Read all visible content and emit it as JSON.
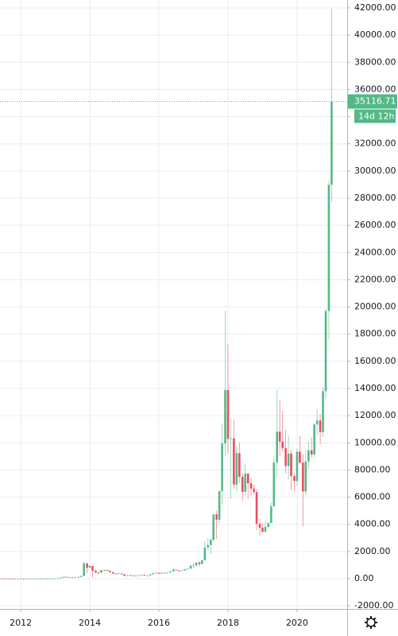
{
  "chart_data": {
    "type": "candlestick",
    "x": [
      2011.42,
      2011.5,
      2011.58,
      2011.67,
      2011.75,
      2011.83,
      2011.92,
      2012,
      2012.08,
      2012.17,
      2012.25,
      2012.33,
      2012.42,
      2012.5,
      2012.58,
      2012.67,
      2012.75,
      2012.83,
      2012.92,
      2013,
      2013.08,
      2013.17,
      2013.25,
      2013.33,
      2013.42,
      2013.5,
      2013.58,
      2013.67,
      2013.75,
      2013.83,
      2013.92,
      2014,
      2014.08,
      2014.17,
      2014.25,
      2014.33,
      2014.42,
      2014.5,
      2014.58,
      2014.67,
      2014.75,
      2014.83,
      2014.92,
      2015,
      2015.08,
      2015.17,
      2015.25,
      2015.33,
      2015.42,
      2015.5,
      2015.58,
      2015.67,
      2015.75,
      2015.83,
      2015.92,
      2016,
      2016.08,
      2016.17,
      2016.25,
      2016.33,
      2016.42,
      2016.5,
      2016.58,
      2016.67,
      2016.75,
      2016.83,
      2016.92,
      2017,
      2017.08,
      2017.17,
      2017.25,
      2017.33,
      2017.42,
      2017.5,
      2017.58,
      2017.67,
      2017.75,
      2017.83,
      2017.92,
      2018,
      2018.08,
      2018.17,
      2018.25,
      2018.33,
      2018.42,
      2018.5,
      2018.58,
      2018.67,
      2018.75,
      2018.83,
      2018.92,
      2019,
      2019.08,
      2019.17,
      2019.25,
      2019.33,
      2019.42,
      2019.5,
      2019.58,
      2019.67,
      2019.75,
      2019.83,
      2019.92,
      2020,
      2020.08,
      2020.17,
      2020.25,
      2020.33,
      2020.42,
      2020.5,
      2020.58,
      2020.67,
      2020.75,
      2020.83,
      2020.92,
      2021
    ],
    "open": [
      9.3,
      16.9,
      13.4,
      8.2,
      5.1,
      3.2,
      3,
      4.7,
      5.5,
      4.9,
      4.9,
      5,
      5.1,
      6.7,
      9.3,
      10.2,
      12.4,
      11.2,
      12.6,
      13.5,
      20.4,
      33.4,
      93,
      139,
      129,
      97,
      106,
      129,
      128,
      204,
      1129,
      805,
      938,
      573,
      452,
      445,
      630,
      640,
      586,
      480,
      387,
      338,
      378,
      320,
      217,
      254,
      244,
      236,
      230,
      263,
      284,
      230,
      236,
      313,
      377,
      430,
      369,
      437,
      416,
      448,
      531,
      673,
      624,
      574,
      609,
      700,
      742,
      964,
      965,
      1190,
      1080,
      1350,
      2300,
      2480,
      2870,
      4730,
      4340,
      6450,
      9950,
      13880,
      10280,
      10330,
      6930,
      9240,
      7500,
      6390,
      7730,
      7020,
      6630,
      6370,
      4040,
      3740,
      3460,
      3810,
      4100,
      5320,
      8560,
      10820,
      10090,
      9600,
      8290,
      9200,
      7550,
      7190,
      9350,
      8540,
      6420,
      8630,
      9450,
      9140,
      11350,
      11650,
      10780,
      13800,
      19700,
      28990
    ],
    "high": [
      29.6,
      17.5,
      14,
      9,
      5.4,
      3.5,
      4.8,
      7.4,
      6.3,
      5.4,
      5.3,
      5.2,
      6.7,
      9.5,
      15.4,
      12.5,
      12.9,
      12.7,
      13.8,
      20.9,
      33.7,
      95,
      266,
      140,
      130,
      110,
      130,
      144,
      225,
      1242,
      1163,
      1048,
      938,
      718,
      550,
      670,
      680,
      660,
      600,
      510,
      420,
      470,
      380,
      320,
      270,
      300,
      260,
      250,
      267,
      320,
      290,
      245,
      330,
      500,
      470,
      460,
      440,
      440,
      470,
      550,
      780,
      680,
      630,
      620,
      720,
      760,
      980,
      1160,
      1210,
      1290,
      1400,
      2800,
      3000,
      2950,
      4750,
      5000,
      6450,
      11400,
      19700,
      17250,
      11780,
      11700,
      9760,
      10000,
      7770,
      8500,
      7760,
      7410,
      6940,
      6600,
      4400,
      4100,
      4200,
      4140,
      5600,
      9000,
      13880,
      13130,
      12330,
      10950,
      10540,
      9500,
      7750,
      9580,
      10500,
      9190,
      9460,
      10070,
      10380,
      11440,
      12470,
      12090,
      14100,
      19900,
      29300,
      41950
    ],
    "low": [
      6.5,
      12.5,
      7,
      4.8,
      2.2,
      2,
      2.7,
      4.6,
      4.3,
      4.7,
      4.8,
      4.9,
      5.2,
      6.6,
      7.1,
      10,
      10.2,
      10.6,
      12.4,
      13.2,
      19.3,
      33,
      50,
      80,
      88,
      65,
      97,
      97,
      100,
      203,
      383,
      765,
      102,
      420,
      340,
      420,
      550,
      560,
      440,
      340,
      280,
      310,
      300,
      170,
      200,
      230,
      210,
      225,
      215,
      255,
      200,
      225,
      235,
      300,
      350,
      350,
      365,
      400,
      415,
      440,
      530,
      600,
      470,
      570,
      605,
      690,
      740,
      750,
      920,
      890,
      1070,
      1340,
      2100,
      1800,
      2700,
      2900,
      4100,
      5500,
      9000,
      9200,
      5870,
      6600,
      6430,
      7050,
      5750,
      6080,
      5880,
      6100,
      6200,
      3560,
      3150,
      3350,
      3390,
      3690,
      4080,
      5350,
      7450,
      9070,
      9330,
      7740,
      7300,
      6520,
      6430,
      6850,
      8450,
      3850,
      6150,
      8100,
      8900,
      8970,
      10540,
      9880,
      10430,
      13220,
      17600,
      27700
    ],
    "close": [
      16.9,
      13.4,
      8.2,
      5.1,
      3.2,
      3,
      4.7,
      5.5,
      4.9,
      4.9,
      5,
      5.1,
      6.7,
      9.3,
      10.2,
      12.4,
      11.2,
      12.6,
      13.5,
      20.4,
      33.4,
      93,
      139,
      129,
      97,
      106,
      129,
      128,
      204,
      1129,
      805,
      938,
      573,
      452,
      445,
      630,
      640,
      586,
      480,
      387,
      338,
      378,
      320,
      217,
      254,
      244,
      236,
      230,
      263,
      284,
      230,
      236,
      313,
      377,
      430,
      369,
      437,
      416,
      448,
      531,
      673,
      624,
      574,
      609,
      700,
      742,
      964,
      965,
      1190,
      1080,
      1350,
      2300,
      2480,
      2870,
      4730,
      4340,
      6450,
      9950,
      13880,
      10280,
      10330,
      6930,
      9240,
      7500,
      6390,
      7730,
      7020,
      6630,
      6370,
      4040,
      3740,
      3460,
      3810,
      4100,
      5320,
      8560,
      10820,
      10090,
      9600,
      8290,
      9200,
      7550,
      7190,
      9350,
      8540,
      6420,
      8630,
      9450,
      9140,
      11350,
      11650,
      10780,
      13800,
      19700,
      28990,
      35116.71
    ],
    "up_color": "#53b987",
    "down_color": "#eb4d5c",
    "xlim": [
      2011.4,
      2021.45
    ],
    "xticks": [
      2012,
      2014,
      2016,
      2018,
      2020
    ],
    "ylim": [
      -2226,
      42585
    ],
    "yticks": [
      {
        "value": -2000,
        "label": "-2000.00"
      },
      {
        "value": 0,
        "label": "0.00"
      },
      {
        "value": 2000,
        "label": "2000.00"
      },
      {
        "value": 4000,
        "label": "4000.00"
      },
      {
        "value": 6000,
        "label": "6000.00"
      },
      {
        "value": 8000,
        "label": "8000.00"
      },
      {
        "value": 10000,
        "label": "10000.00"
      },
      {
        "value": 12000,
        "label": "12000.00"
      },
      {
        "value": 14000,
        "label": "14000.00"
      },
      {
        "value": 16000,
        "label": "16000.00"
      },
      {
        "value": 18000,
        "label": "18000.00"
      },
      {
        "value": 20000,
        "label": "20000.00"
      },
      {
        "value": 22000,
        "label": "22000.00"
      },
      {
        "value": 24000,
        "label": "24000.00"
      },
      {
        "value": 26000,
        "label": "26000.00"
      },
      {
        "value": 28000,
        "label": "28000.00"
      },
      {
        "value": 30000,
        "label": "30000.00"
      },
      {
        "value": 32000,
        "label": "32000.00"
      },
      {
        "value": 34000,
        "label": "34000.00"
      },
      {
        "value": 36000,
        "label": "36000.00"
      },
      {
        "value": 38000,
        "label": "38000.00"
      },
      {
        "value": 40000,
        "label": "40000.00"
      },
      {
        "value": 42000,
        "label": "42000.00"
      }
    ],
    "grid": true,
    "countdown": "14d 12h"
  }
}
